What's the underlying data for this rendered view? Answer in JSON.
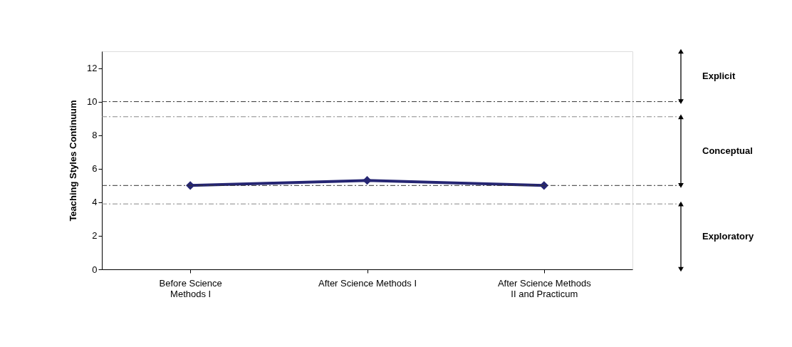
{
  "chart_data": {
    "type": "line",
    "ylabel": "Teaching Styles Continuum",
    "categories": [
      "Before Science Methods I",
      "After Science Methods I",
      "After Science Methods II and Practicum"
    ],
    "series": [
      {
        "color": "#262673",
        "values": [
          5,
          5.3,
          5
        ]
      }
    ],
    "marker": "diamond",
    "ylim": [
      0,
      13
    ],
    "yticks": [
      0,
      2,
      4,
      6,
      8,
      10,
      12
    ],
    "grid": false,
    "ref_lines": [
      {
        "axis": "y",
        "value": 10,
        "color": "#333333"
      },
      {
        "axis": "y",
        "value": 9.1,
        "color": "#888888"
      },
      {
        "axis": "y",
        "value": 5,
        "color": "#333333"
      },
      {
        "axis": "y",
        "value": 3.9,
        "color": "#888888"
      }
    ],
    "annotations": [
      "Explicit",
      "Conceptual",
      "Exploratory"
    ]
  }
}
